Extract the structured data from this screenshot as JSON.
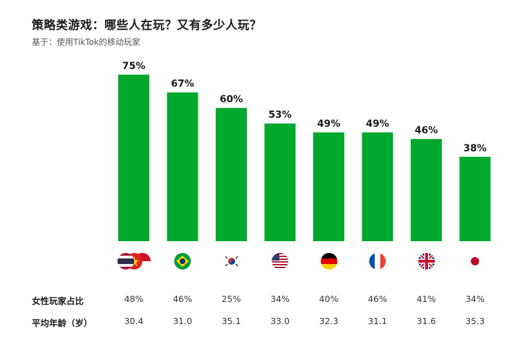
{
  "title": "策略类游戏：哪些人在玩？又有多少人玩？",
  "subtitle": "基于：使用TikTok的移动玩家",
  "colors": {
    "bar": "#00a82d",
    "text": "#1a1a1a"
  },
  "rows": {
    "female_label": "女性玩家占比",
    "age_label": "平均年龄（岁）"
  },
  "flags": [
    "thailand-vietnam-indonesia-flags",
    "brazil-flag",
    "south-korea-flag",
    "usa-flag",
    "germany-flag",
    "france-flag",
    "uk-flag",
    "japan-flag"
  ],
  "chart_data": {
    "type": "bar",
    "categories": [
      "Thailand / Vietnam / Indonesia",
      "Brazil",
      "South Korea",
      "USA",
      "Germany",
      "France",
      "UK",
      "Japan"
    ],
    "values": [
      75,
      67,
      60,
      53,
      49,
      49,
      46,
      38
    ],
    "value_labels": [
      "75%",
      "67%",
      "60%",
      "53%",
      "49%",
      "49%",
      "46%",
      "38%"
    ],
    "ylim": [
      0,
      75
    ],
    "female_share": [
      "48%",
      "46%",
      "25%",
      "34%",
      "40%",
      "46%",
      "41%",
      "34%"
    ],
    "average_age": [
      "30.4",
      "31.0",
      "35.1",
      "33.0",
      "32.3",
      "31.1",
      "31.6",
      "35.3"
    ]
  }
}
